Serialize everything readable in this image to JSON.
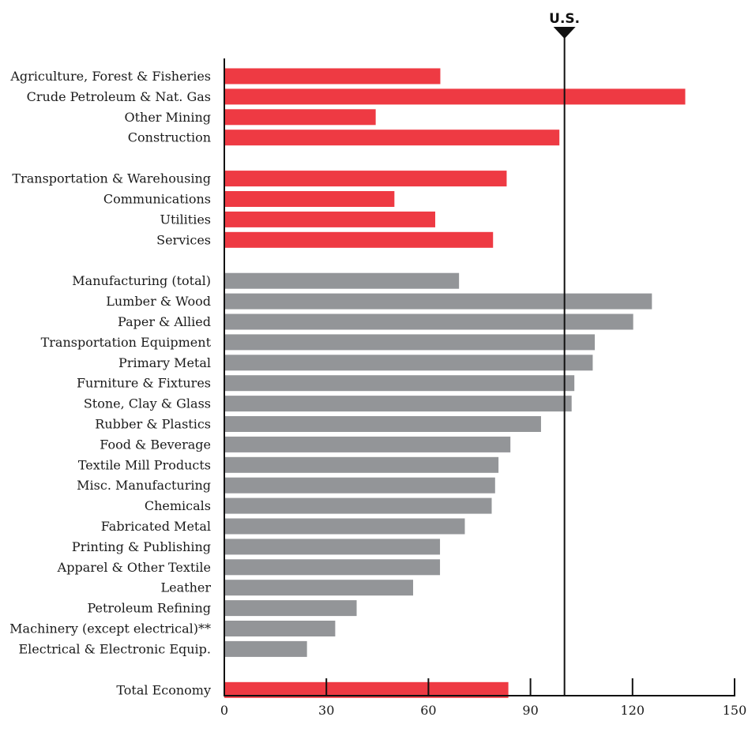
{
  "colors": {
    "highlight": "#ee3a43",
    "manufacturing": "#939598",
    "axis": "#111111"
  },
  "reference": {
    "label": "U.S.",
    "value": 100
  },
  "chart_data": {
    "type": "bar",
    "orientation": "horizontal",
    "xlim": [
      0,
      150
    ],
    "xticks": [
      "0",
      "30",
      "60",
      "90",
      "120",
      "150"
    ],
    "grid": false,
    "legend": "none",
    "categories": [
      "Agriculture, Forest & Fisheries",
      "Crude Petroleum & Nat. Gas",
      "Other Mining",
      "Construction",
      "Transportation & Warehousing",
      "Communications",
      "Utilities",
      "Services",
      "Manufacturing (total)",
      "Lumber & Wood",
      "Paper & Allied",
      "Transportation Equipment",
      "Primary Metal",
      "Furniture & Fixtures",
      "Stone, Clay & Glass",
      "Rubber & Plastics",
      "Food & Beverage",
      "Textile Mill Products",
      "Misc. Manufacturing",
      "Chemicals",
      "Fabricated Metal",
      "Printing & Publishing",
      "Apparel & Other Textile",
      "Leather",
      "Petroleum Refining",
      "Machinery (except electrical)**",
      "Electrical & Electronic Equip.",
      "Total Economy"
    ],
    "values": [
      63.5,
      135.5,
      44.5,
      98.5,
      83,
      50,
      62,
      79,
      69,
      125.7,
      120.2,
      108.9,
      108.3,
      102.9,
      102.1,
      93.1,
      84.1,
      80.6,
      79.6,
      78.6,
      70.7,
      63.4,
      63.4,
      55.5,
      38.9,
      32.6,
      24.3,
      83.5
    ],
    "groups": [
      "highlight",
      "highlight",
      "highlight",
      "highlight",
      "highlight",
      "highlight",
      "highlight",
      "highlight",
      "manufacturing",
      "manufacturing",
      "manufacturing",
      "manufacturing",
      "manufacturing",
      "manufacturing",
      "manufacturing",
      "manufacturing",
      "manufacturing",
      "manufacturing",
      "manufacturing",
      "manufacturing",
      "manufacturing",
      "manufacturing",
      "manufacturing",
      "manufacturing",
      "manufacturing",
      "manufacturing",
      "manufacturing",
      "highlight"
    ],
    "section_starts": [
      0,
      4,
      8,
      27
    ]
  }
}
